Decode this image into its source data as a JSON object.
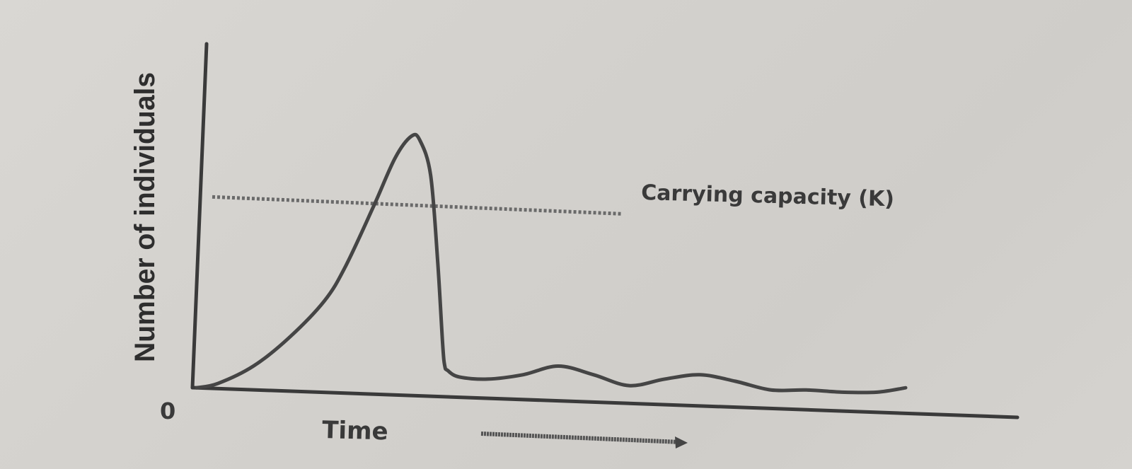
{
  "chart_data": {
    "type": "line",
    "title": "",
    "xlabel": "Time",
    "ylabel": "Number of individuals",
    "origin_label": "0",
    "carrying_capacity_label": "Carrying capacity (K)",
    "carrying_capacity_value": 100,
    "x_ticks": [],
    "y_ticks": [],
    "grid": false,
    "xlim": [
      0,
      100
    ],
    "ylim": [
      0,
      150
    ],
    "series": [
      {
        "x": [
          0,
          3,
          8,
          13,
          18,
          21,
          25,
          28,
          30.3,
          31.5,
          33,
          34,
          34.7,
          35,
          35.4,
          37,
          41,
          46,
          51,
          56,
          61,
          66,
          71,
          76,
          81,
          86,
          91,
          96,
          100
        ],
        "y": [
          12,
          14,
          22,
          35,
          52,
          68,
          96,
          118,
          128,
          126,
          110,
          70,
          32,
          22,
          20,
          17,
          16,
          18,
          22,
          18,
          13,
          16,
          18,
          15,
          11,
          11,
          10,
          10,
          12
        ]
      }
    ],
    "colors": {
      "line": "#454545",
      "capacity_line": "#6a6a6a",
      "axis": "#3a3a3a"
    }
  }
}
